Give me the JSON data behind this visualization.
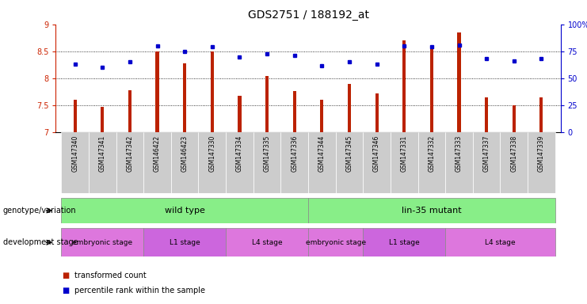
{
  "title": "GDS2751 / 188192_at",
  "samples": [
    "GSM147340",
    "GSM147341",
    "GSM147342",
    "GSM146422",
    "GSM146423",
    "GSM147330",
    "GSM147334",
    "GSM147335",
    "GSM147336",
    "GSM147344",
    "GSM147345",
    "GSM147346",
    "GSM147331",
    "GSM147332",
    "GSM147333",
    "GSM147337",
    "GSM147338",
    "GSM147339"
  ],
  "transformed_count": [
    7.6,
    7.47,
    7.78,
    8.5,
    8.28,
    8.5,
    7.68,
    8.04,
    7.77,
    7.6,
    7.9,
    7.72,
    8.7,
    8.58,
    8.85,
    7.65,
    7.5,
    7.65
  ],
  "percentile_rank": [
    63,
    60,
    65,
    80,
    75,
    79,
    70,
    73,
    71,
    62,
    65,
    63,
    80,
    79,
    81,
    68,
    66,
    68
  ],
  "ylim_left": [
    7.0,
    9.0
  ],
  "ylim_right": [
    0,
    100
  ],
  "yticks_left": [
    7.0,
    7.5,
    8.0,
    8.5,
    9.0
  ],
  "yticks_right": [
    0,
    25,
    50,
    75,
    100
  ],
  "yticklabels_right": [
    "0",
    "25",
    "50",
    "75",
    "100%"
  ],
  "bar_color": "#bb2200",
  "dot_color": "#0000cc",
  "bg_color": "#ffffff",
  "label_bg_color": "#cccccc",
  "genotype_groups": [
    {
      "label": "wild type",
      "start": 0,
      "end": 8,
      "color": "#88ee88"
    },
    {
      "label": "lin-35 mutant",
      "start": 9,
      "end": 17,
      "color": "#88ee88"
    }
  ],
  "dev_stage_groups": [
    {
      "label": "embryonic stage",
      "start": 0,
      "end": 2,
      "color": "#dd77dd"
    },
    {
      "label": "L1 stage",
      "start": 3,
      "end": 5,
      "color": "#cc66dd"
    },
    {
      "label": "L4 stage",
      "start": 6,
      "end": 8,
      "color": "#dd77dd"
    },
    {
      "label": "embryonic stage",
      "start": 9,
      "end": 10,
      "color": "#dd77dd"
    },
    {
      "label": "L1 stage",
      "start": 11,
      "end": 13,
      "color": "#cc66dd"
    },
    {
      "label": "L4 stage",
      "start": 14,
      "end": 17,
      "color": "#dd77dd"
    }
  ],
  "legend_bar_label": "transformed count",
  "legend_dot_label": "percentile rank within the sample",
  "left_axis_color": "#cc2200",
  "right_axis_color": "#0000cc",
  "title_fontsize": 10,
  "tick_fontsize": 7,
  "label_fontsize": 7.5
}
